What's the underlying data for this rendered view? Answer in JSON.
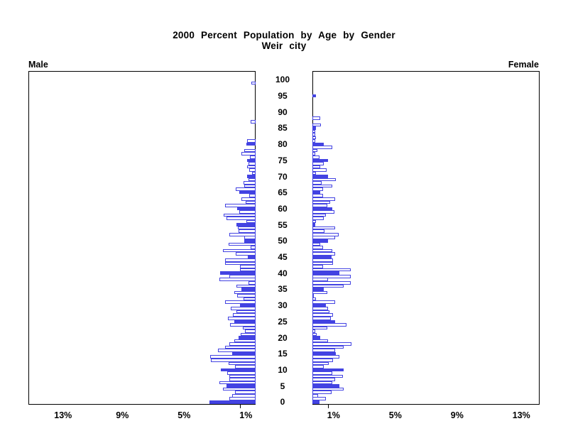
{
  "title": {
    "line1": "2000 Percent Population by Age by Gender",
    "line2": "Weir city"
  },
  "panels": {
    "left_label": "Male",
    "right_label": "Female"
  },
  "axes": {
    "x_tick_labels_left": [
      "13%",
      "9%",
      "5%",
      "1%"
    ],
    "x_tick_labels_right": [
      "1%",
      "5%",
      "9%",
      "13%"
    ],
    "x_tick_values_left": [
      13,
      9,
      5,
      1
    ],
    "x_tick_values_right": [
      1,
      5,
      9,
      13
    ],
    "x_tick_marks_percent": [
      1
    ],
    "age_tick_values": [
      0,
      5,
      10,
      15,
      20,
      25,
      30,
      35,
      40,
      45,
      50,
      55,
      60,
      65,
      70,
      75,
      80,
      85,
      90,
      95,
      100
    ]
  },
  "colors": {
    "bar_outline": "#4343e2",
    "bar_fill_highlight": "#4343e2",
    "bar_fill_regular": "#ffffff",
    "axis": "#000000",
    "text": "#000000",
    "background": "#ffffff"
  },
  "chart_data": {
    "type": "bar",
    "subtype": "population-pyramid",
    "title": "2000 Percent Population by Age by Gender",
    "subtitle": "Weir city",
    "x_unit": "percent of population",
    "xlim": [
      0,
      14.7
    ],
    "x_ticks": [
      1,
      5,
      9,
      13
    ],
    "age_axis": {
      "min": 0,
      "max": 100,
      "tick_step": 5
    },
    "highlight_rule": "bars for ages divisible by 5 are solid filled; other ages are hollow",
    "ages": "0..100 single years, index = age",
    "series": [
      {
        "name": "Male",
        "side": "left",
        "values": [
          3.0,
          1.7,
          1.5,
          1.35,
          2.1,
          1.9,
          2.35,
          1.7,
          1.7,
          1.85,
          2.25,
          1.35,
          1.75,
          2.9,
          2.95,
          1.5,
          2.45,
          2.0,
          1.7,
          1.4,
          1.1,
          0.95,
          0.7,
          0.85,
          1.65,
          1.4,
          1.8,
          1.45,
          1.25,
          1.6,
          1.0,
          2.0,
          0.8,
          1.2,
          1.4,
          0.9,
          1.25,
          0.45,
          2.35,
          1.7,
          2.3,
          1.0,
          1.0,
          2.0,
          2.0,
          0.5,
          1.3,
          2.1,
          0.3,
          1.75,
          0.75,
          0.75,
          1.7,
          1.1,
          1.15,
          1.25,
          0.6,
          1.9,
          2.05,
          1.05,
          1.2,
          2.0,
          0.66,
          0.9,
          0.43,
          1.05,
          1.3,
          0.75,
          0.8,
          0.46,
          0.55,
          0.23,
          0.41,
          0.54,
          0.46,
          0.57,
          0.37,
          0.93,
          0.75,
          0,
          0.6,
          0.55,
          0,
          0,
          0,
          0,
          0,
          0.3,
          0,
          0,
          0,
          0,
          0,
          0,
          0,
          0,
          0,
          0,
          0,
          0.28,
          0
        ]
      },
      {
        "name": "Female",
        "side": "right",
        "values": [
          0.47,
          0.86,
          0.37,
          1.24,
          2.0,
          1.75,
          1.3,
          1.45,
          1.96,
          1.29,
          2.0,
          0.74,
          1.04,
          1.35,
          1.75,
          1.5,
          1.47,
          2.0,
          2.51,
          1.01,
          0.52,
          0.28,
          0.17,
          0.98,
          2.2,
          1.47,
          1.2,
          1.32,
          1.09,
          1.0,
          0.89,
          1.47,
          0.25,
          0.1,
          0.98,
          0.74,
          2.0,
          2.5,
          1.0,
          2.47,
          1.75,
          2.47,
          0.7,
          1.35,
          1.32,
          1.24,
          1.45,
          1.29,
          0.7,
          0.52,
          1.01,
          1.47,
          1.7,
          0.8,
          1.45,
          0.2,
          0.25,
          0.74,
          0.89,
          1.44,
          1.29,
          0.98,
          1.16,
          1.47,
          0.7,
          0.52,
          0.7,
          1.29,
          0.58,
          1.5,
          1.0,
          0.25,
          0.93,
          0.52,
          0.74,
          1.0,
          0.47,
          0.2,
          0.3,
          1.3,
          0.73,
          0.17,
          0.23,
          0.17,
          0.17,
          0.25,
          0.55,
          0,
          0.5,
          0,
          0,
          0,
          0,
          0,
          0,
          0.25,
          0,
          0,
          0,
          0,
          0
        ]
      }
    ]
  }
}
